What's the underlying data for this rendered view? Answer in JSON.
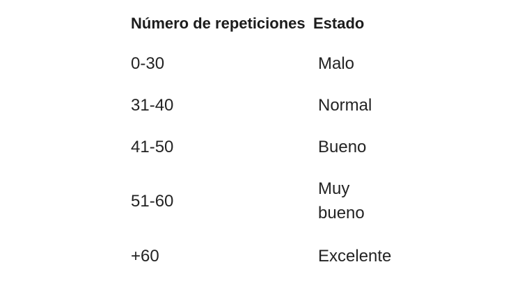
{
  "table": {
    "headers": [
      "Número de repeticiones",
      "Estado"
    ],
    "rows": [
      {
        "range": "0-30",
        "estado": "Malo"
      },
      {
        "range": "31-40",
        "estado": "Normal"
      },
      {
        "range": "41-50",
        "estado": "Bueno"
      },
      {
        "range": "51-60",
        "estado": "Muy\nbueno"
      },
      {
        "range": "+60",
        "estado": "Excelente"
      }
    ],
    "colors": {
      "text": "#232323",
      "background": "#ffffff"
    }
  }
}
